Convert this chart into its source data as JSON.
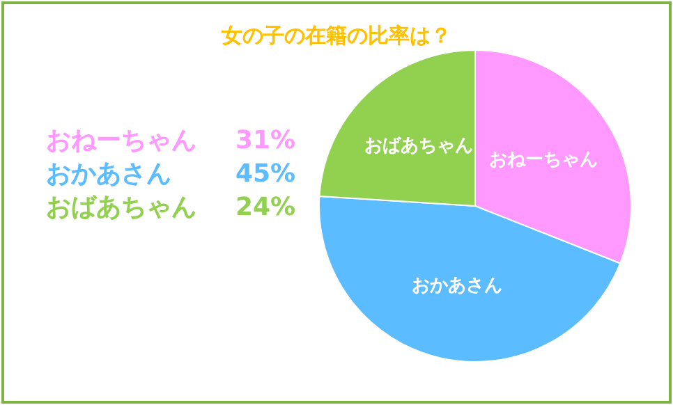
{
  "chart_data": {
    "type": "pie",
    "title": "女の子の在籍の比率は？",
    "categories": [
      "おねーちゃん",
      "おかあさん",
      "おばあちゃん"
    ],
    "values": [
      31,
      45,
      24
    ],
    "annotations": [
      "31%",
      "45%",
      "24%"
    ],
    "colors": [
      "#ff99ff",
      "#5bbcff",
      "#92d050"
    ]
  }
}
